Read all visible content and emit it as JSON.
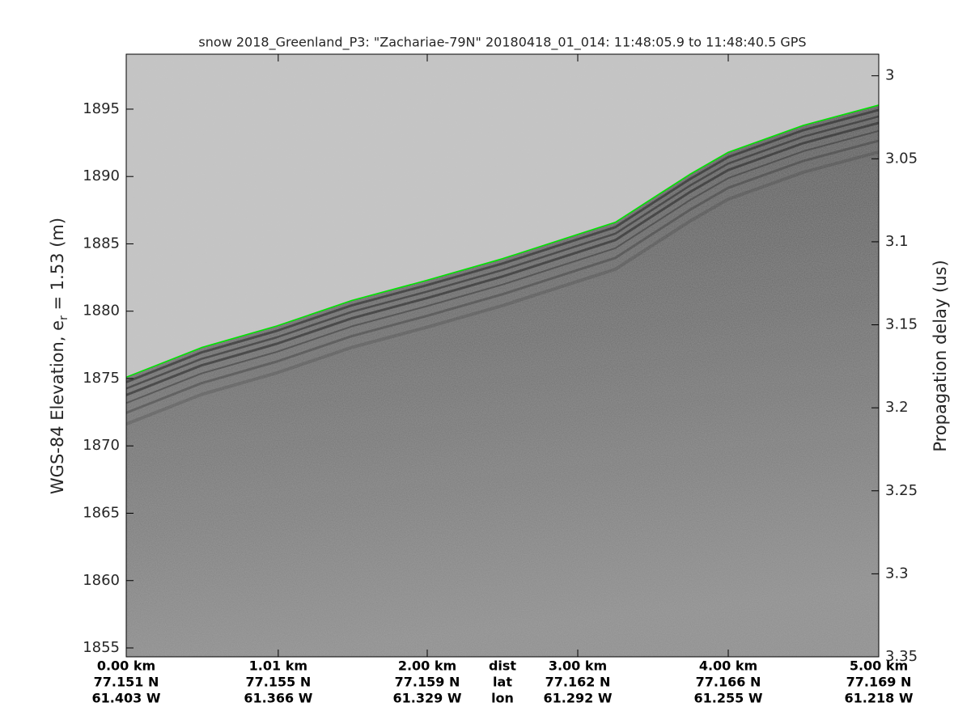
{
  "chart_data": {
    "type": "line",
    "title": "snow 2018_Greenland_P3: \"Zachariae-79N\"  20180418_01_014: 11:48:05.9 to 11:48:40.5 GPS",
    "ylabel": {
      "prefix": "WGS-84 Elevation, e",
      "subscript": "r",
      "suffix": " = 1.53 (m)"
    },
    "y2label": "Propagation delay (us)",
    "x": [
      0,
      0.5,
      1.0,
      1.5,
      2.0,
      2.5,
      3.0,
      3.25,
      3.5,
      3.75,
      4.0,
      4.5,
      5.0
    ],
    "values": [
      1875.1,
      1877.3,
      1878.9,
      1880.8,
      1882.3,
      1883.9,
      1885.7,
      1886.6,
      1888.4,
      1890.2,
      1891.8,
      1893.8,
      1895.3
    ],
    "color": "#00e600",
    "xlim": [
      0,
      5
    ],
    "xticks": [
      {
        "value": 0,
        "label": "0.00 km"
      },
      {
        "value": 1.01,
        "label": "1.01 km"
      },
      {
        "value": 2.0,
        "label": "2.00 km"
      },
      {
        "value": 3.0,
        "label": "3.00 km"
      },
      {
        "value": 4.0,
        "label": "4.00 km"
      },
      {
        "value": 5.0,
        "label": "5.00 km"
      }
    ],
    "x_tick_lat": [
      "77.151 N",
      "77.155 N",
      "77.159 N",
      "77.162 N",
      "77.166 N",
      "77.169 N"
    ],
    "x_tick_lon": [
      "61.403 W",
      "61.366 W",
      "61.329 W",
      "61.292 W",
      "61.255 W",
      "61.218 W"
    ],
    "x_tick_rows": [
      "dist",
      "lat",
      "lon"
    ],
    "ylim": [
      1854.34,
      1899.08
    ],
    "yticks": [
      1855,
      1860,
      1865,
      1870,
      1875,
      1880,
      1885,
      1890,
      1895
    ],
    "y2lim": [
      2.987,
      3.35
    ],
    "y2ticks": [
      3,
      3.05,
      3.1,
      3.15,
      3.2,
      3.25,
      3.3,
      3.35
    ]
  }
}
